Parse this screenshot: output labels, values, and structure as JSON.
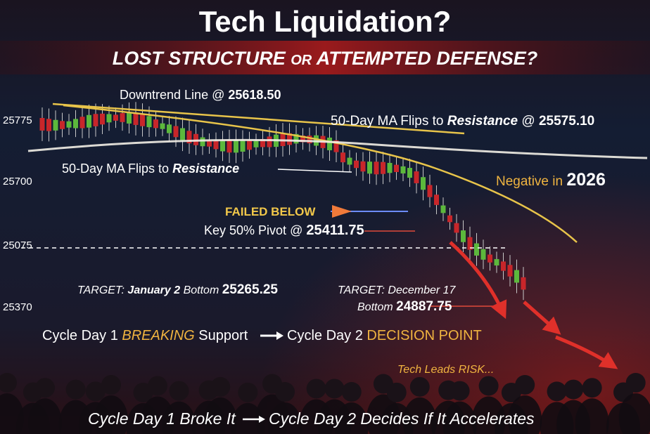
{
  "header": {
    "title": "Tech Liquidation?",
    "subtitle": [
      "LOST STRUCTURE",
      "OR",
      "ATTEMPTED DEFENSE?"
    ]
  },
  "axis_labels": [
    "25775",
    "25700",
    "25075",
    "25370"
  ],
  "annotations": {
    "downtrend": [
      "Downtrend Line @",
      "25618.50"
    ],
    "ma_top": [
      "50-Day MA Flips to",
      "Resistance",
      "@",
      "25575.10"
    ],
    "ma_left": [
      "50-Day MA Flips to",
      "Resistance"
    ],
    "negative": [
      "Negative in",
      "2026"
    ],
    "failed": "FAILED BELOW",
    "pivot": [
      "Key 50% Pivot @",
      "25411.75"
    ],
    "target_jan": [
      "TARGET:",
      "January 2",
      "Bottom",
      "25265.25"
    ],
    "target_dec": [
      "TARGET: December 17",
      "Bottom",
      "24887.75"
    ]
  },
  "cycle_line": [
    "Cycle Day 1",
    "BREAKING",
    "Support",
    "Cycle Day 2",
    "DECISION POINT"
  ],
  "tech_leads": "Tech Leads RISK...",
  "footer": [
    "Cycle Day 1 Broke It",
    "Cycle Day 2 Decides If It Accelerates"
  ]
}
